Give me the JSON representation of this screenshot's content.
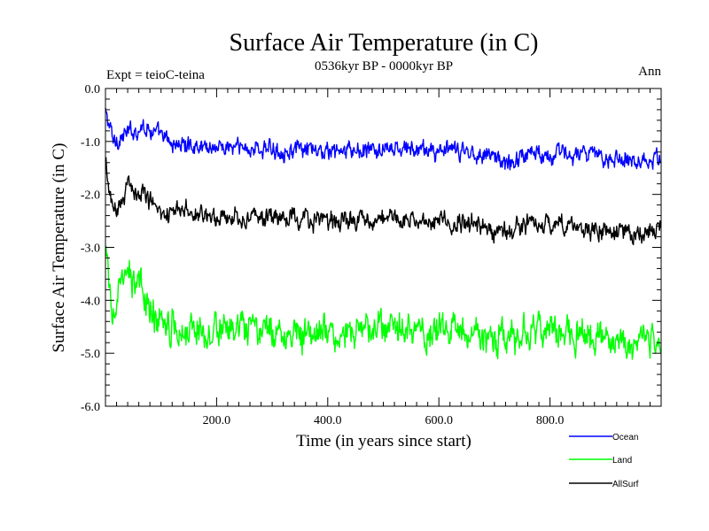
{
  "chart_data": {
    "type": "line",
    "title": "Surface Air Temperature (in C)",
    "subtitle": "0536kyr BP - 0000kyr BP",
    "experiment_label": "Expt = teioC-teina",
    "season_label": "Ann",
    "xlabel": "Time (in years since start)",
    "ylabel": "Surface Air Temperature (in C)",
    "xlim": [
      0,
      1000
    ],
    "ylim": [
      -6.0,
      0.0
    ],
    "x_ticks": [
      200,
      400,
      600,
      800
    ],
    "x_tick_labels": [
      "200.0",
      "400.0",
      "600.0",
      "800.0"
    ],
    "y_ticks": [
      0,
      -1,
      -2,
      -3,
      -4,
      -5,
      -6
    ],
    "y_tick_labels": [
      "0.0",
      "-1.0",
      "-2.0",
      "-3.0",
      "-4.0",
      "-5.0",
      "-6.0"
    ],
    "grid": false,
    "legend_position": "bottom-right, outside plot",
    "n_points": 1000,
    "series": [
      {
        "name": "Ocean",
        "color": "#0000ff",
        "noise_amplitude": 0.11,
        "anchors": [
          [
            0,
            -0.45
          ],
          [
            15,
            -1.0
          ],
          [
            40,
            -0.85
          ],
          [
            70,
            -0.7
          ],
          [
            120,
            -1.05
          ],
          [
            200,
            -1.1
          ],
          [
            400,
            -1.2
          ],
          [
            550,
            -1.15
          ],
          [
            650,
            -1.2
          ],
          [
            700,
            -1.25
          ],
          [
            720,
            -1.45
          ],
          [
            760,
            -1.2
          ],
          [
            850,
            -1.25
          ],
          [
            920,
            -1.3
          ],
          [
            999,
            -1.35
          ]
        ]
      },
      {
        "name": "Land",
        "color": "#00ff00",
        "noise_amplitude": 0.2,
        "anchors": [
          [
            0,
            -3.1
          ],
          [
            12,
            -4.2
          ],
          [
            40,
            -3.5
          ],
          [
            60,
            -3.7
          ],
          [
            80,
            -4.2
          ],
          [
            130,
            -4.5
          ],
          [
            250,
            -4.6
          ],
          [
            400,
            -4.6
          ],
          [
            550,
            -4.55
          ],
          [
            650,
            -4.6
          ],
          [
            710,
            -4.8
          ],
          [
            760,
            -4.55
          ],
          [
            850,
            -4.6
          ],
          [
            940,
            -4.8
          ],
          [
            999,
            -4.7
          ]
        ]
      },
      {
        "name": "AllSurf",
        "color": "#000000",
        "noise_amplitude": 0.12,
        "anchors": [
          [
            0,
            -1.45
          ],
          [
            15,
            -2.4
          ],
          [
            40,
            -1.85
          ],
          [
            70,
            -1.95
          ],
          [
            100,
            -2.3
          ],
          [
            200,
            -2.4
          ],
          [
            400,
            -2.5
          ],
          [
            550,
            -2.45
          ],
          [
            650,
            -2.55
          ],
          [
            710,
            -2.75
          ],
          [
            760,
            -2.55
          ],
          [
            850,
            -2.6
          ],
          [
            930,
            -2.75
          ],
          [
            999,
            -2.7
          ]
        ]
      }
    ]
  }
}
